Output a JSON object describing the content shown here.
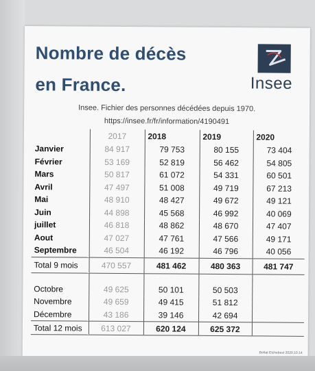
{
  "document": {
    "title_line1": "Nombre de décès",
    "title_line2": "en France.",
    "logo_text": "Insee",
    "source_line1": "Insee. Fichier des personnes décédées depuis 1970.",
    "source_line2": "https://insee.fr/fr/information/4190491",
    "credit": "Beñat Etchebest 2020.10.14",
    "colors": {
      "title": "#2f4e73",
      "logo": "#2d3e55",
      "faded": "#9a9a9a"
    }
  },
  "table": {
    "years": [
      "2017",
      "2018",
      "2019",
      "2020"
    ],
    "rows": [
      {
        "month": "Janvier",
        "v2017": "84 917",
        "v2018": "79 753",
        "v2019": "80 155",
        "v2020": "73 404"
      },
      {
        "month": "Février",
        "v2017": "53 169",
        "v2018": "52 819",
        "v2019": "56 462",
        "v2020": "54 805"
      },
      {
        "month": "Mars",
        "v2017": "50 817",
        "v2018": "61 072",
        "v2019": "54 331",
        "v2020": "60 501"
      },
      {
        "month": "Avril",
        "v2017": "47 497",
        "v2018": "51 008",
        "v2019": "49 719",
        "v2020": "67 213"
      },
      {
        "month": "Mai",
        "v2017": "48 910",
        "v2018": "48 427",
        "v2019": "49 672",
        "v2020": "49 121"
      },
      {
        "month": "Juin",
        "v2017": "44 898",
        "v2018": "45 568",
        "v2019": "46 992",
        "v2020": "40 069"
      },
      {
        "month": "juillet",
        "v2017": "46 818",
        "v2018": "48 862",
        "v2019": "48 670",
        "v2020": "47 407"
      },
      {
        "month": "Aout",
        "v2017": "47 027",
        "v2018": "47 761",
        "v2019": "47 566",
        "v2020": "49 171"
      },
      {
        "month": "Septembre",
        "v2017": "46 504",
        "v2018": "46 192",
        "v2019": "46 796",
        "v2020": "40 056"
      }
    ],
    "total9": {
      "label": "Total 9 mois",
      "v2017": "470 557",
      "v2018": "481 462",
      "v2019": "480 363",
      "v2020": "481 747"
    },
    "rows_q4": [
      {
        "month": "Octobre",
        "v2017": "49 625",
        "v2018": "50 101",
        "v2019": "50 503"
      },
      {
        "month": "Novembre",
        "v2017": "49 659",
        "v2018": "49 415",
        "v2019": "51 812"
      },
      {
        "month": "Décembre",
        "v2017": "43 186",
        "v2018": "39 146",
        "v2019": "42 694"
      }
    ],
    "total12": {
      "label": "Total 12 mois",
      "v2017": "613 027",
      "v2018": "620 124",
      "v2019": "625 372"
    }
  }
}
